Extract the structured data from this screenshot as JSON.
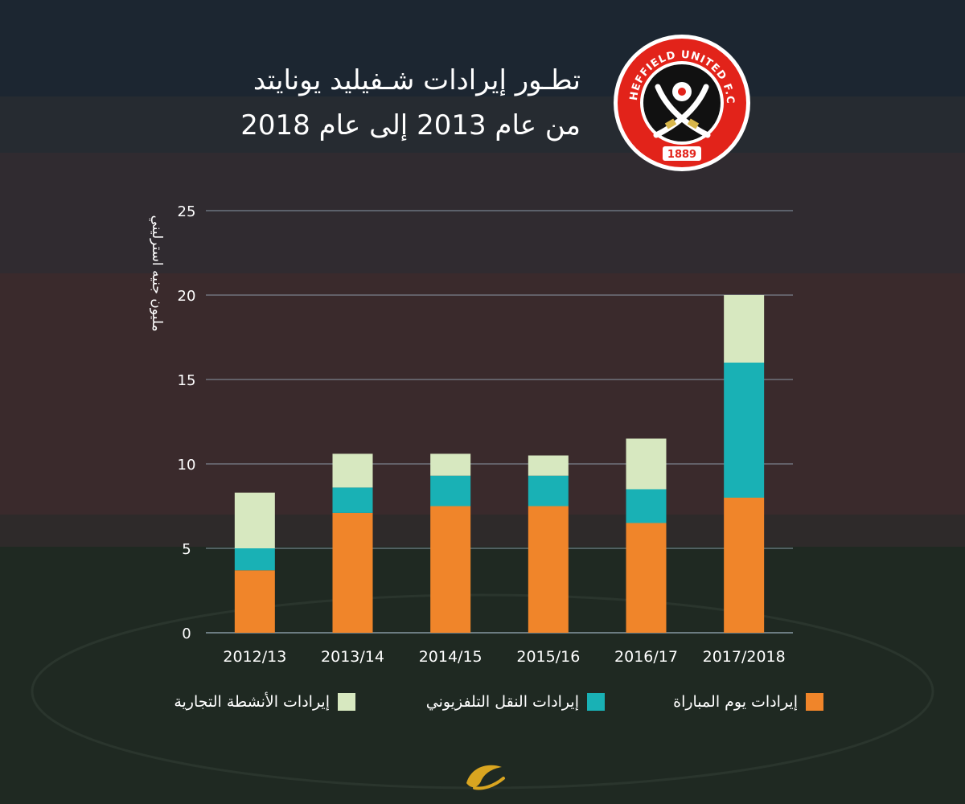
{
  "title": {
    "line1": "تطـور إيرادات شـفيليد يونايتد",
    "line2": "من عام 2013 إلى عام 2018"
  },
  "club_logo": {
    "name": "SHEFFIELD UNITED F.C.",
    "year": "1889"
  },
  "colors": {
    "matchday": "#f0852a",
    "tv": "#19b1b5",
    "commercial": "#d7e8c0",
    "gridline": "#9fb3c4",
    "logo_red": "#e2231a"
  },
  "chart_data": {
    "type": "bar",
    "stacked": true,
    "ylabel": "مليون جنيه استرليني",
    "ylim": [
      0,
      25
    ],
    "yticks": [
      0,
      5,
      10,
      15,
      20,
      25
    ],
    "grid": true,
    "legend_position": "bottom",
    "categories": [
      "2012/13",
      "2013/14",
      "2014/15",
      "2015/16",
      "2016/17",
      "2017/2018"
    ],
    "series": [
      {
        "name": "إيرادات يوم المباراة",
        "color": "#f0852a",
        "values": [
          3.7,
          7.1,
          7.5,
          7.5,
          6.5,
          8.0
        ]
      },
      {
        "name": "إيرادات النقل التلفزيوني",
        "color": "#19b1b5",
        "values": [
          1.3,
          1.5,
          1.8,
          1.8,
          2.0,
          8.0
        ]
      },
      {
        "name": "إيرادات الأنشطة التجارية",
        "color": "#d7e8c0",
        "values": [
          3.3,
          2.0,
          1.3,
          1.2,
          3.0,
          4.0
        ]
      }
    ]
  }
}
